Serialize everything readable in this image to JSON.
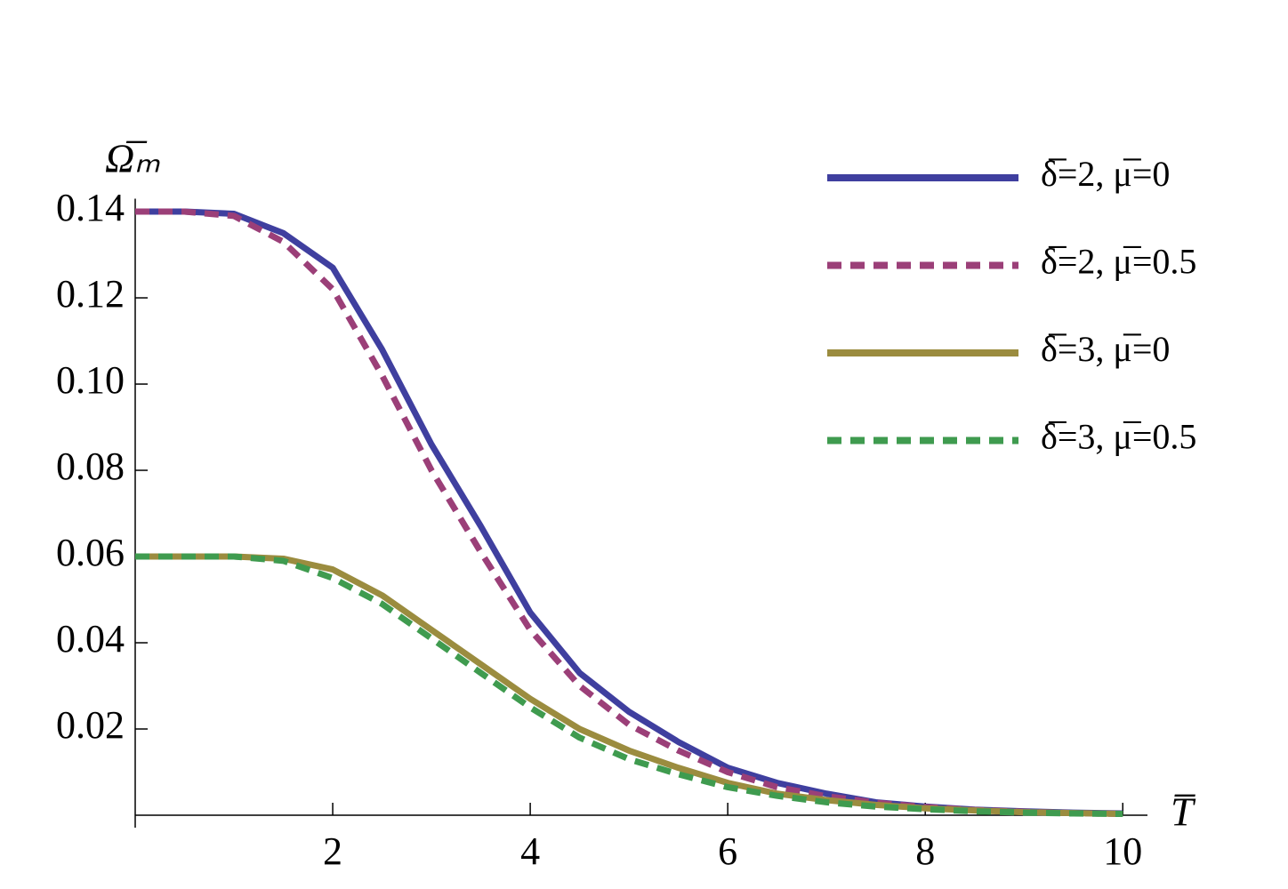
{
  "chart_data": {
    "type": "line",
    "xlabel": "T̅",
    "ylabel": "Ω̅ₘ",
    "x": [
      0,
      0.5,
      1,
      1.5,
      2,
      2.5,
      3,
      3.5,
      4,
      4.5,
      5,
      5.5,
      6,
      6.5,
      7,
      7.5,
      8,
      8.5,
      9,
      9.5,
      10
    ],
    "series": [
      {
        "name": "δ̅=2, μ̅=0",
        "color": "#3f3f9f",
        "dashed": false,
        "values": [
          0.14,
          0.14,
          0.1395,
          0.135,
          0.127,
          0.108,
          0.086,
          0.067,
          0.047,
          0.033,
          0.024,
          0.017,
          0.011,
          0.0075,
          0.005,
          0.003,
          0.002,
          0.0013,
          0.0009,
          0.0006,
          0.0004
        ]
      },
      {
        "name": "δ̅=2, μ̅=0.5",
        "color": "#9b3f78",
        "dashed": true,
        "values": [
          0.14,
          0.14,
          0.139,
          0.133,
          0.122,
          0.102,
          0.08,
          0.061,
          0.043,
          0.03,
          0.021,
          0.015,
          0.01,
          0.0065,
          0.0044,
          0.0029,
          0.0019,
          0.0012,
          0.0008,
          0.0005,
          0.0003
        ]
      },
      {
        "name": "δ̅=3, μ̅=0",
        "color": "#9b8c3f",
        "dashed": false,
        "values": [
          0.06,
          0.06,
          0.06,
          0.0595,
          0.057,
          0.051,
          0.043,
          0.035,
          0.027,
          0.02,
          0.015,
          0.011,
          0.0075,
          0.005,
          0.0035,
          0.0024,
          0.0016,
          0.0011,
          0.0007,
          0.0005,
          0.0003
        ]
      },
      {
        "name": "δ̅=3, μ̅=0.5",
        "color": "#3f9b4f",
        "dashed": true,
        "values": [
          0.06,
          0.06,
          0.06,
          0.059,
          0.055,
          0.049,
          0.041,
          0.033,
          0.025,
          0.018,
          0.013,
          0.0095,
          0.0065,
          0.0045,
          0.003,
          0.002,
          0.0014,
          0.0009,
          0.0006,
          0.0004,
          0.0003
        ]
      }
    ],
    "xlim": [
      0,
      10.25
    ],
    "ylim": [
      0,
      0.143
    ],
    "xticks": [
      2,
      4,
      6,
      8,
      10
    ],
    "yticks": [
      0.02,
      0.04,
      0.06,
      0.08,
      {
        "value": 0.1,
        "label": "0.10"
      },
      0.12,
      0.14
    ],
    "grid": false,
    "legend": "top-right"
  }
}
